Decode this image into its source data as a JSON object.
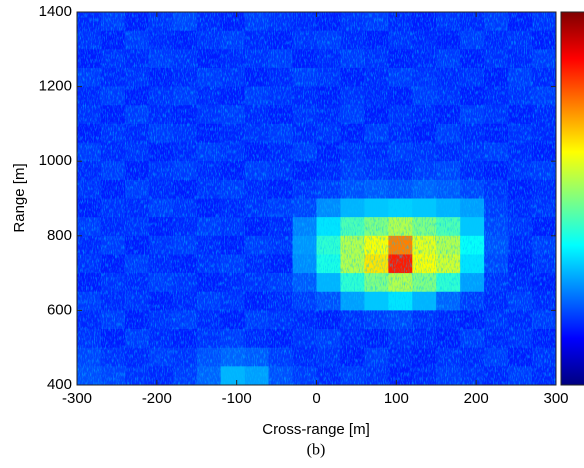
{
  "chart_data": {
    "type": "heatmap",
    "xlabel": "Cross-range [m]",
    "ylabel": "Range [m]",
    "caption": "(b)",
    "xlim": [
      -300,
      300
    ],
    "ylim": [
      400,
      1400
    ],
    "xticks": [
      -300,
      -200,
      -100,
      0,
      100,
      200,
      300
    ],
    "yticks": [
      400,
      600,
      800,
      1000,
      1200,
      1400
    ],
    "colormap": "jet",
    "zlim": [
      0,
      1
    ],
    "z": [
      [
        0.16,
        0.18,
        0.15,
        0.17,
        0.19,
        0.16,
        0.15,
        0.18,
        0.17,
        0.16,
        0.15,
        0.17,
        0.18,
        0.16,
        0.15,
        0.17,
        0.16,
        0.18,
        0.15,
        0.17
      ],
      [
        0.17,
        0.15,
        0.18,
        0.16,
        0.15,
        0.17,
        0.18,
        0.16,
        0.15,
        0.17,
        0.18,
        0.16,
        0.15,
        0.17,
        0.16,
        0.15,
        0.18,
        0.16,
        0.17,
        0.15
      ],
      [
        0.15,
        0.17,
        0.16,
        0.18,
        0.17,
        0.15,
        0.16,
        0.17,
        0.18,
        0.15,
        0.16,
        0.18,
        0.17,
        0.15,
        0.16,
        0.18,
        0.15,
        0.17,
        0.16,
        0.18
      ],
      [
        0.18,
        0.16,
        0.17,
        0.15,
        0.16,
        0.18,
        0.17,
        0.15,
        0.16,
        0.18,
        0.17,
        0.15,
        0.16,
        0.18,
        0.17,
        0.16,
        0.17,
        0.15,
        0.18,
        0.16
      ],
      [
        0.16,
        0.18,
        0.15,
        0.17,
        0.18,
        0.16,
        0.15,
        0.18,
        0.17,
        0.16,
        0.15,
        0.17,
        0.16,
        0.15,
        0.18,
        0.17,
        0.15,
        0.16,
        0.17,
        0.18
      ],
      [
        0.17,
        0.15,
        0.18,
        0.16,
        0.15,
        0.17,
        0.18,
        0.16,
        0.15,
        0.17,
        0.16,
        0.18,
        0.15,
        0.17,
        0.16,
        0.15,
        0.18,
        0.17,
        0.15,
        0.16
      ],
      [
        0.15,
        0.17,
        0.16,
        0.18,
        0.17,
        0.15,
        0.16,
        0.17,
        0.18,
        0.16,
        0.17,
        0.15,
        0.18,
        0.16,
        0.15,
        0.18,
        0.16,
        0.15,
        0.17,
        0.16
      ],
      [
        0.18,
        0.16,
        0.17,
        0.15,
        0.16,
        0.18,
        0.17,
        0.15,
        0.16,
        0.18,
        0.15,
        0.17,
        0.16,
        0.18,
        0.17,
        0.16,
        0.17,
        0.18,
        0.16,
        0.15
      ],
      [
        0.16,
        0.18,
        0.15,
        0.17,
        0.18,
        0.16,
        0.15,
        0.18,
        0.17,
        0.15,
        0.16,
        0.18,
        0.17,
        0.16,
        0.18,
        0.19,
        0.16,
        0.15,
        0.17,
        0.18
      ],
      [
        0.17,
        0.15,
        0.18,
        0.16,
        0.15,
        0.17,
        0.18,
        0.16,
        0.15,
        0.17,
        0.18,
        0.2,
        0.21,
        0.2,
        0.22,
        0.21,
        0.19,
        0.17,
        0.15,
        0.16
      ],
      [
        0.15,
        0.17,
        0.16,
        0.18,
        0.17,
        0.15,
        0.16,
        0.17,
        0.18,
        0.19,
        0.26,
        0.3,
        0.32,
        0.33,
        0.32,
        0.3,
        0.28,
        0.18,
        0.16,
        0.17
      ],
      [
        0.18,
        0.16,
        0.17,
        0.15,
        0.16,
        0.18,
        0.17,
        0.15,
        0.16,
        0.25,
        0.35,
        0.45,
        0.5,
        0.55,
        0.5,
        0.45,
        0.32,
        0.19,
        0.17,
        0.15
      ],
      [
        0.16,
        0.18,
        0.15,
        0.17,
        0.18,
        0.16,
        0.15,
        0.18,
        0.17,
        0.27,
        0.42,
        0.55,
        0.62,
        0.75,
        0.6,
        0.55,
        0.38,
        0.2,
        0.16,
        0.18
      ],
      [
        0.17,
        0.15,
        0.18,
        0.16,
        0.15,
        0.17,
        0.18,
        0.16,
        0.15,
        0.26,
        0.4,
        0.55,
        0.65,
        0.85,
        0.62,
        0.58,
        0.35,
        0.19,
        0.15,
        0.17
      ],
      [
        0.15,
        0.17,
        0.16,
        0.18,
        0.17,
        0.15,
        0.16,
        0.17,
        0.18,
        0.21,
        0.3,
        0.42,
        0.5,
        0.55,
        0.5,
        0.42,
        0.28,
        0.17,
        0.16,
        0.15
      ],
      [
        0.18,
        0.16,
        0.17,
        0.15,
        0.16,
        0.18,
        0.17,
        0.15,
        0.16,
        0.18,
        0.2,
        0.28,
        0.32,
        0.35,
        0.3,
        0.22,
        0.18,
        0.16,
        0.18,
        0.16
      ],
      [
        0.16,
        0.18,
        0.15,
        0.17,
        0.18,
        0.16,
        0.15,
        0.18,
        0.17,
        0.16,
        0.15,
        0.17,
        0.18,
        0.19,
        0.17,
        0.16,
        0.15,
        0.17,
        0.16,
        0.18
      ],
      [
        0.17,
        0.15,
        0.18,
        0.16,
        0.15,
        0.17,
        0.18,
        0.16,
        0.15,
        0.17,
        0.18,
        0.16,
        0.15,
        0.17,
        0.16,
        0.15,
        0.18,
        0.16,
        0.17,
        0.15
      ],
      [
        0.19,
        0.17,
        0.16,
        0.18,
        0.17,
        0.2,
        0.22,
        0.21,
        0.18,
        0.16,
        0.17,
        0.15,
        0.18,
        0.16,
        0.15,
        0.17,
        0.16,
        0.18,
        0.15,
        0.17
      ],
      [
        0.2,
        0.19,
        0.17,
        0.16,
        0.18,
        0.22,
        0.3,
        0.28,
        0.2,
        0.18,
        0.16,
        0.18,
        0.17,
        0.15,
        0.16,
        0.18,
        0.17,
        0.16,
        0.18,
        0.16
      ]
    ]
  }
}
